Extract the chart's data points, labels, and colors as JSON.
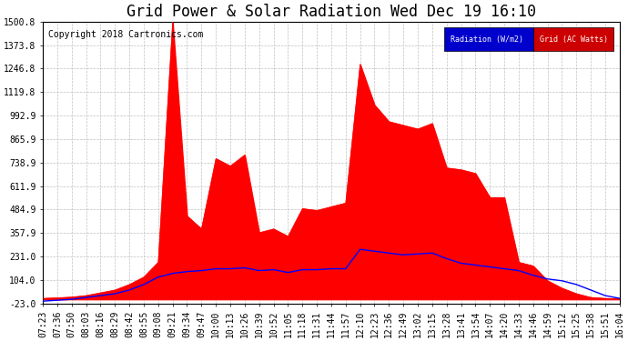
{
  "title": "Grid Power & Solar Radiation Wed Dec 19 16:10",
  "copyright": "Copyright 2018 Cartronics.com",
  "yticks": [
    -23.0,
    104.0,
    231.0,
    357.9,
    484.9,
    611.9,
    738.9,
    865.9,
    992.9,
    1119.8,
    1246.8,
    1373.8,
    1500.8
  ],
  "ylim": [
    -23.0,
    1500.8
  ],
  "background_color": "#ffffff",
  "grid_color": "#c0c0c0",
  "radiation_color": "#ff0000",
  "grid_line_color": "#0000ff",
  "legend_radiation_bg": "#0000cc",
  "legend_grid_bg": "#cc0000",
  "xtick_labels": [
    "07:23",
    "07:36",
    "07:50",
    "08:03",
    "08:16",
    "08:29",
    "08:42",
    "08:55",
    "09:08",
    "09:21",
    "09:34",
    "09:47",
    "10:00",
    "10:13",
    "10:26",
    "10:39",
    "10:52",
    "11:05",
    "11:18",
    "11:31",
    "11:44",
    "11:57",
    "12:10",
    "12:23",
    "12:36",
    "12:49",
    "13:02",
    "13:15",
    "13:28",
    "13:41",
    "13:54",
    "14:07",
    "14:20",
    "14:33",
    "14:46",
    "14:59",
    "15:12",
    "15:25",
    "15:38",
    "15:51",
    "16:04"
  ],
  "solar_rad": [
    5,
    8,
    12,
    20,
    35,
    50,
    80,
    120,
    200,
    1500,
    450,
    380,
    760,
    720,
    780,
    360,
    380,
    340,
    490,
    480,
    500,
    520,
    1270,
    1050,
    960,
    940,
    920,
    950,
    710,
    700,
    680,
    550,
    550,
    200,
    180,
    100,
    60,
    30,
    10,
    5,
    3
  ],
  "grid_power": [
    -10,
    -5,
    0,
    10,
    20,
    30,
    50,
    80,
    120,
    140,
    150,
    155,
    165,
    165,
    170,
    155,
    160,
    145,
    160,
    160,
    165,
    165,
    270,
    260,
    250,
    240,
    245,
    250,
    220,
    195,
    185,
    175,
    165,
    155,
    130,
    110,
    100,
    80,
    50,
    20,
    5
  ],
  "title_fontsize": 12,
  "tick_fontsize": 7,
  "copyright_fontsize": 7,
  "legend_fontsize": 6
}
